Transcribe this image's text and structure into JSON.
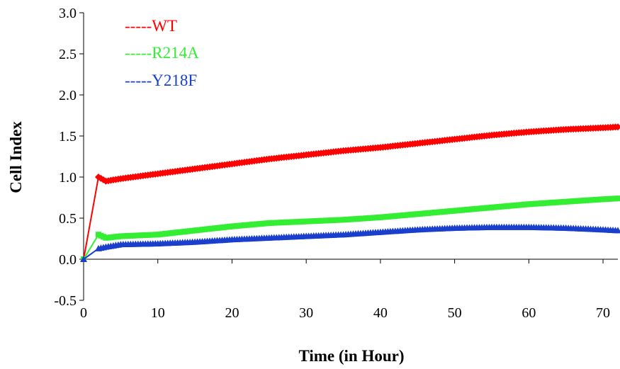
{
  "chart_data": {
    "type": "line",
    "xlabel": "Time (in Hour)",
    "ylabel": "Cell Index",
    "xlim": [
      0,
      72
    ],
    "ylim": [
      -0.5,
      3.0
    ],
    "xticks": [
      0,
      10,
      20,
      30,
      40,
      50,
      60,
      70
    ],
    "yticks": [
      -0.5,
      0.0,
      0.5,
      1.0,
      1.5,
      2.0,
      2.5,
      3.0
    ],
    "grid": false,
    "legend_position": "top-left",
    "series": [
      {
        "name": "-----WT",
        "color": "#ff0000",
        "marker": "diamond",
        "x": [
          0,
          2,
          3,
          5,
          10,
          15,
          20,
          25,
          30,
          35,
          40,
          45,
          50,
          55,
          60,
          65,
          70,
          72
        ],
        "y": [
          0.0,
          1.0,
          0.95,
          0.98,
          1.04,
          1.1,
          1.16,
          1.22,
          1.27,
          1.32,
          1.36,
          1.41,
          1.46,
          1.51,
          1.55,
          1.58,
          1.6,
          1.61
        ]
      },
      {
        "name": "-----R214A",
        "color": "#33ee33",
        "marker": "square",
        "x": [
          0,
          2,
          3,
          5,
          10,
          15,
          20,
          25,
          30,
          35,
          40,
          45,
          50,
          55,
          60,
          65,
          70,
          72
        ],
        "y": [
          0.0,
          0.3,
          0.26,
          0.28,
          0.3,
          0.35,
          0.4,
          0.44,
          0.46,
          0.48,
          0.51,
          0.55,
          0.59,
          0.63,
          0.67,
          0.7,
          0.73,
          0.74
        ]
      },
      {
        "name": "-----Y218F",
        "color": "#1a3fcc",
        "marker": "triangle",
        "x": [
          0,
          2,
          3,
          5,
          10,
          15,
          20,
          25,
          30,
          35,
          40,
          45,
          50,
          55,
          60,
          65,
          70,
          72
        ],
        "y": [
          0.0,
          0.13,
          0.15,
          0.18,
          0.19,
          0.21,
          0.24,
          0.26,
          0.28,
          0.3,
          0.33,
          0.36,
          0.38,
          0.39,
          0.39,
          0.38,
          0.36,
          0.35
        ]
      }
    ]
  }
}
